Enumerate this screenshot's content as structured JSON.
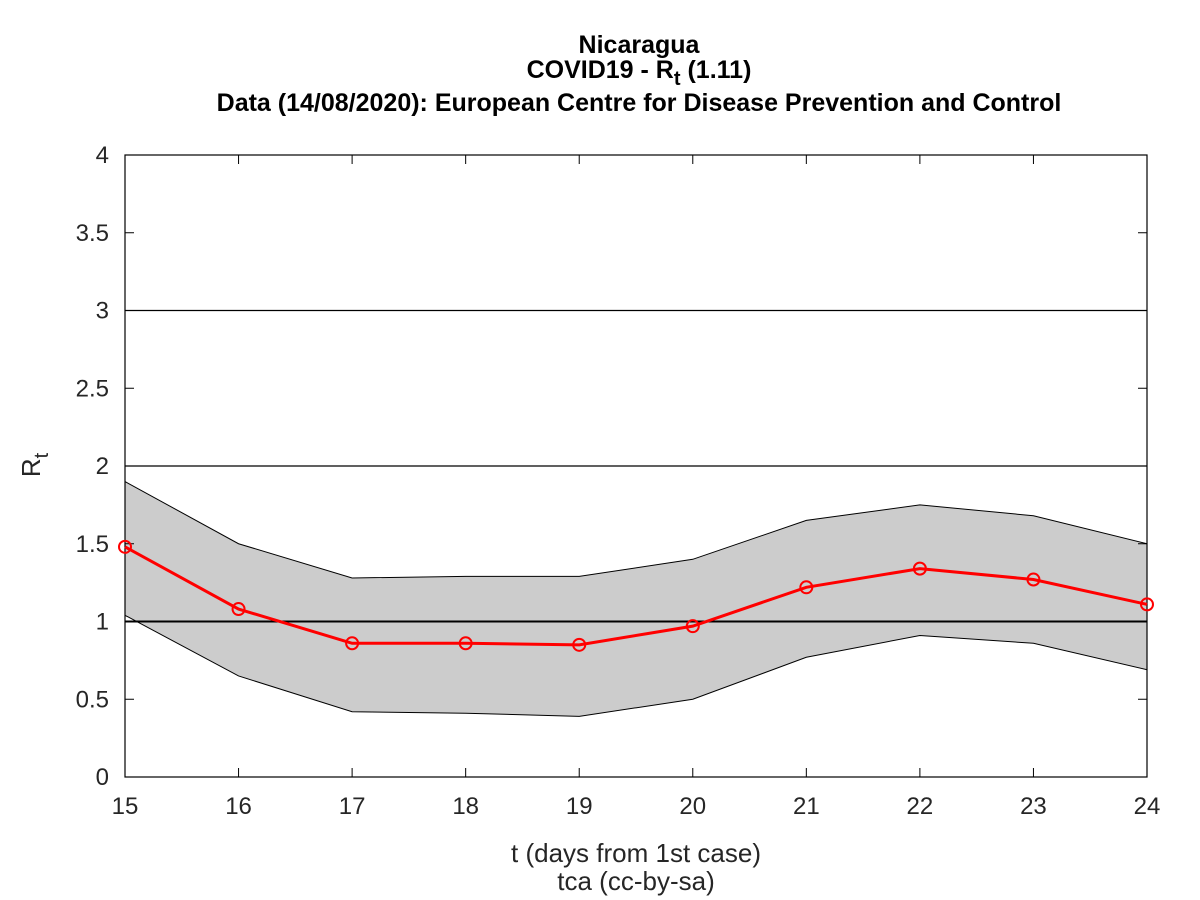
{
  "chart_data": {
    "type": "line",
    "title": "Nicaragua",
    "subtitle_prefix": "COVID19 - R",
    "subtitle_sub": "t",
    "subtitle_suffix": " (1.11)",
    "source_line": "Data (14/08/2020): European Centre for Disease Prevention and Control",
    "xlabel": "t (days from 1st case)",
    "credit": "tca (cc-by-sa)",
    "ylabel_main": "R",
    "ylabel_sub": "t",
    "xlim": [
      15,
      24
    ],
    "ylim": [
      0,
      4
    ],
    "x_ticks": [
      15,
      16,
      17,
      18,
      19,
      20,
      21,
      22,
      23,
      24
    ],
    "y_ticks": [
      0,
      0.5,
      1,
      1.5,
      2,
      2.5,
      3,
      3.5,
      4
    ],
    "y_tick_labels": [
      "0",
      "0.5",
      "1",
      "1.5",
      "2",
      "2.5",
      "3",
      "3.5",
      "4"
    ],
    "reference_lines": [
      1,
      2,
      3
    ],
    "series": [
      {
        "x": [
          15,
          16,
          17,
          18,
          19,
          20,
          21,
          22,
          23,
          24
        ],
        "values": [
          1.48,
          1.08,
          0.86,
          0.86,
          0.85,
          0.97,
          1.22,
          1.34,
          1.27,
          1.11
        ],
        "color": "#ff0000"
      }
    ],
    "band": {
      "upper": [
        1.9,
        1.5,
        1.28,
        1.29,
        1.29,
        1.4,
        1.65,
        1.75,
        1.68,
        1.5
      ],
      "lower": [
        1.04,
        0.65,
        0.42,
        0.41,
        0.39,
        0.5,
        0.77,
        0.91,
        0.86,
        0.69
      ],
      "color": "#cccccc"
    },
    "grid": false,
    "legend": "none"
  }
}
